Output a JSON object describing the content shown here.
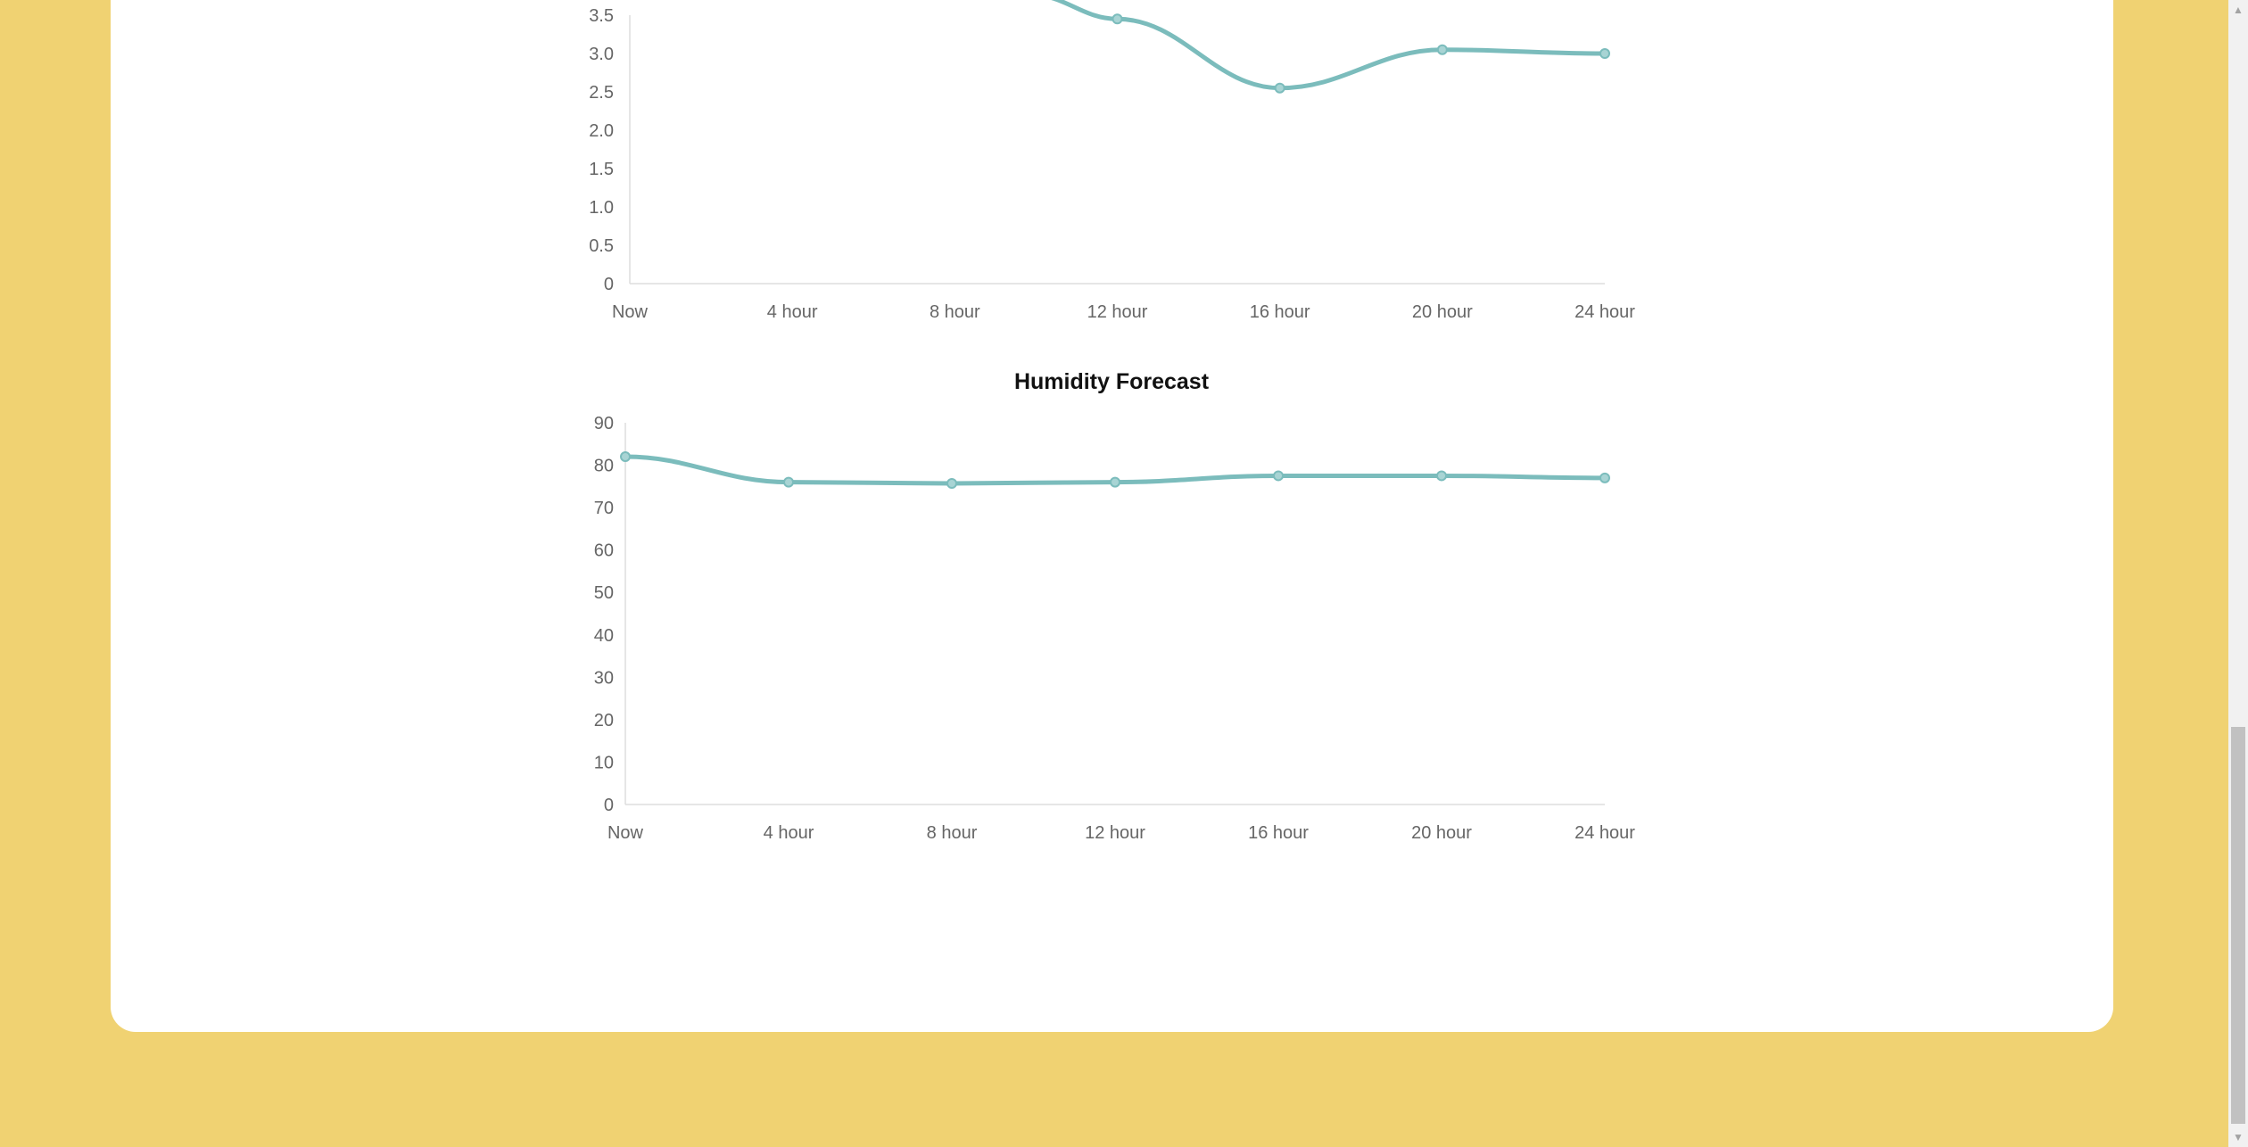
{
  "chart_data": [
    {
      "type": "line",
      "title": "",
      "categories": [
        "Now",
        "4 hour",
        "8 hour",
        "12 hour",
        "16 hour",
        "20 hour",
        "24 hour"
      ],
      "series": [
        {
          "values": [
            null,
            null,
            null,
            3.45,
            2.55,
            3.05,
            3.0
          ]
        }
      ],
      "yticks": [
        "0",
        "0.5",
        "1.0",
        "1.5",
        "2.0",
        "2.5",
        "3.0",
        "3.5"
      ],
      "ylim": [
        0,
        3.5
      ],
      "grid": false,
      "color": "#7bbcbc"
    },
    {
      "type": "line",
      "title": "Humidity Forecast",
      "categories": [
        "Now",
        "4 hour",
        "8 hour",
        "12 hour",
        "16 hour",
        "20 hour",
        "24 hour"
      ],
      "series": [
        {
          "values": [
            82,
            76,
            75.7,
            76,
            77.5,
            77.5,
            77
          ]
        }
      ],
      "yticks": [
        "0",
        "10",
        "20",
        "30",
        "40",
        "50",
        "60",
        "70",
        "80",
        "90"
      ],
      "ylim": [
        0,
        90
      ],
      "grid": false,
      "color": "#7bbcbc"
    }
  ],
  "scrollbar": {
    "up_icon": "▲",
    "down_icon": "▼"
  }
}
